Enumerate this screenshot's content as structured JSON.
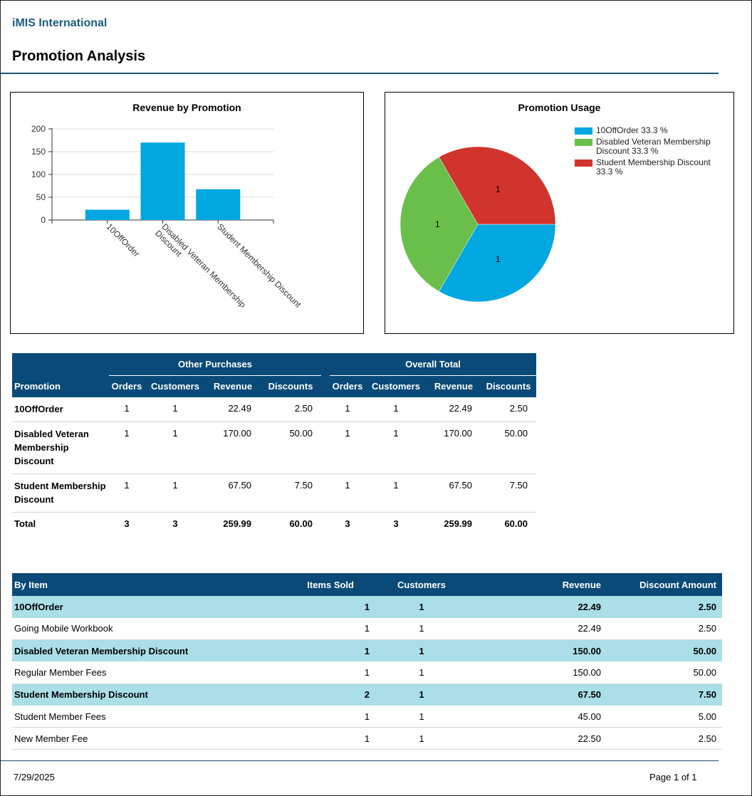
{
  "header": {
    "org": "iMIS International",
    "title": "Promotion Analysis"
  },
  "bar_chart": {
    "title": "Revenue by Promotion"
  },
  "pie_chart": {
    "title": "Promotion Usage",
    "legend": [
      {
        "label": "10OffOrder 33.3 %",
        "color": "#00a7e0"
      },
      {
        "label": "Disabled Veteran Membership Discount 33.3 %",
        "color": "#6abf4b"
      },
      {
        "label": "Student Membership Discount 33.3 %",
        "color": "#d0342c"
      }
    ]
  },
  "chart_data": [
    {
      "type": "bar",
      "title": "Revenue by Promotion",
      "categories": [
        "10OffOrder",
        "Disabled Veteran Membership Discount",
        "Student Membership Discount"
      ],
      "values": [
        22.49,
        170.0,
        67.5
      ],
      "ylim": [
        0,
        200
      ],
      "yticks": [
        "0",
        "50",
        "100",
        "150",
        "200"
      ],
      "grid": true,
      "color": "#00a7e0",
      "xlabel": "",
      "ylabel": ""
    },
    {
      "type": "pie",
      "title": "Promotion Usage",
      "categories": [
        "10OffOrder",
        "Disabled Veteran Membership Discount",
        "Student Membership Discount"
      ],
      "values": [
        1,
        1,
        1
      ],
      "data_labels": [
        "1",
        "1",
        "1"
      ],
      "colors": [
        "#00a7e0",
        "#6abf4b",
        "#d0342c"
      ],
      "legend_position": "top-right"
    }
  ],
  "promo_table": {
    "col_promotion": "Promotion",
    "group_other": "Other Purchases",
    "group_overall": "Overall Total",
    "cols": [
      "Orders",
      "Customers",
      "Revenue",
      "Discounts",
      "Orders",
      "Customers",
      "Revenue",
      "Discounts"
    ],
    "rows": [
      {
        "name": "10OffOrder",
        "v": [
          "1",
          "1",
          "22.49",
          "2.50",
          "1",
          "1",
          "22.49",
          "2.50"
        ]
      },
      {
        "name": "Disabled Veteran Membership Discount",
        "v": [
          "1",
          "1",
          "170.00",
          "50.00",
          "1",
          "1",
          "170.00",
          "50.00"
        ]
      },
      {
        "name": "Student Membership Discount",
        "v": [
          "1",
          "1",
          "67.50",
          "7.50",
          "1",
          "1",
          "67.50",
          "7.50"
        ]
      }
    ],
    "total": {
      "name": "Total",
      "v": [
        "3",
        "3",
        "259.99",
        "60.00",
        "3",
        "3",
        "259.99",
        "60.00"
      ]
    }
  },
  "item_table": {
    "cols": [
      "By Item",
      "Items Sold",
      "Customers",
      "Revenue",
      "Discount Amount"
    ],
    "rows": [
      {
        "group": true,
        "v": [
          "10OffOrder",
          "1",
          "1",
          "22.49",
          "2.50"
        ]
      },
      {
        "group": false,
        "v": [
          "Going Mobile Workbook",
          "1",
          "1",
          "22.49",
          "2.50"
        ]
      },
      {
        "group": true,
        "v": [
          "Disabled Veteran Membership Discount",
          "1",
          "1",
          "150.00",
          "50.00"
        ]
      },
      {
        "group": false,
        "v": [
          "Regular Member Fees",
          "1",
          "1",
          "150.00",
          "50.00"
        ]
      },
      {
        "group": true,
        "v": [
          "Student Membership Discount",
          "2",
          "1",
          "67.50",
          "7.50"
        ]
      },
      {
        "group": false,
        "v": [
          "Student Member Fees",
          "1",
          "1",
          "45.00",
          "5.00"
        ]
      },
      {
        "group": false,
        "v": [
          "New Member Fee",
          "1",
          "1",
          "22.50",
          "2.50"
        ]
      }
    ]
  },
  "footer": {
    "date": "7/29/2025",
    "page": "Page 1 of  1"
  }
}
